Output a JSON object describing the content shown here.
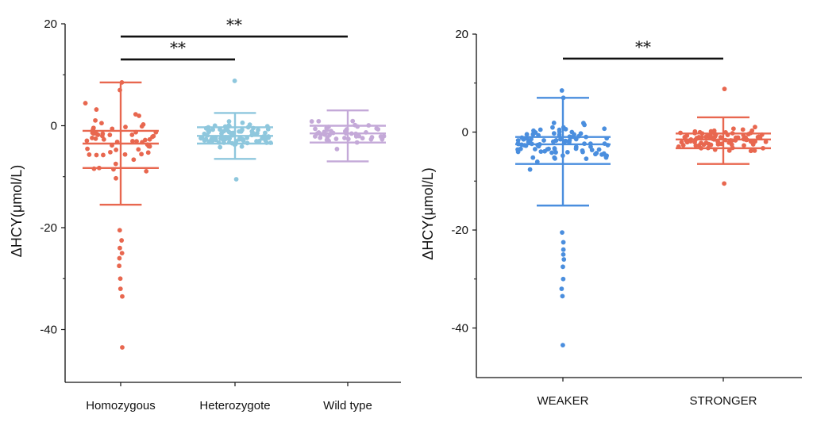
{
  "chart_data": [
    {
      "type": "scatter",
      "subtype": "jittered dot plot with mean and SD error bars",
      "ylabel": "ΔHCY(μmol/L)",
      "ylim": [
        -50,
        20
      ],
      "yticks": [
        20,
        0,
        -20,
        -40
      ],
      "categories": [
        "Homozygous",
        "Heterozygote",
        "Wild type"
      ],
      "colors": [
        "#e8674f",
        "#8ec7dd",
        "#c4a9d8"
      ],
      "stats": [
        {
          "mean": -3.5,
          "sd_upper": 8.5,
          "sd_lower": -15.5,
          "box_upper": -1.0,
          "box_lower": -8.3
        },
        {
          "mean": -2.0,
          "sd_upper": 2.5,
          "sd_lower": -6.5,
          "box_upper": -0.3,
          "box_lower": -3.5
        },
        {
          "mean": -1.5,
          "sd_upper": 3.0,
          "sd_lower": -7.0,
          "box_upper": 0.0,
          "box_lower": -3.3
        }
      ],
      "outliers": [
        [
          -20.5,
          -22.5,
          -24.0,
          -25.0,
          -26.0,
          -27.5,
          -30.0,
          -32.0,
          -33.5,
          -43.5,
          7.0,
          8.5
        ],
        [
          8.8,
          -10.5
        ],
        []
      ],
      "significance": [
        {
          "from": 0,
          "to": 2,
          "y": 17.5,
          "label": "**"
        },
        {
          "from": 0,
          "to": 1,
          "y": 13.0,
          "label": "**"
        }
      ]
    },
    {
      "type": "scatter",
      "subtype": "jittered dot plot with mean and SD error bars",
      "ylabel": "ΔHCY(μmol/L)",
      "ylim": [
        -50,
        20
      ],
      "yticks": [
        20,
        0,
        -20,
        -40
      ],
      "categories": [
        "WEAKER",
        "STRONGER"
      ],
      "colors": [
        "#4a8ede",
        "#e8674f"
      ],
      "stats": [
        {
          "mean": -2.5,
          "sd_upper": 7.0,
          "sd_lower": -15.0,
          "box_upper": -1.0,
          "box_lower": -6.5
        },
        {
          "mean": -1.5,
          "sd_upper": 3.0,
          "sd_lower": -6.5,
          "box_upper": -0.3,
          "box_lower": -3.3
        }
      ],
      "outliers": [
        [
          -20.5,
          -22.5,
          -24.0,
          -25.0,
          -26.0,
          -27.5,
          -30.0,
          -32.0,
          -33.5,
          -43.5,
          7.0,
          8.5
        ],
        [
          8.8,
          -10.5
        ]
      ],
      "significance": [
        {
          "from": 0,
          "to": 1,
          "y": 15.0,
          "label": "**"
        }
      ]
    }
  ]
}
